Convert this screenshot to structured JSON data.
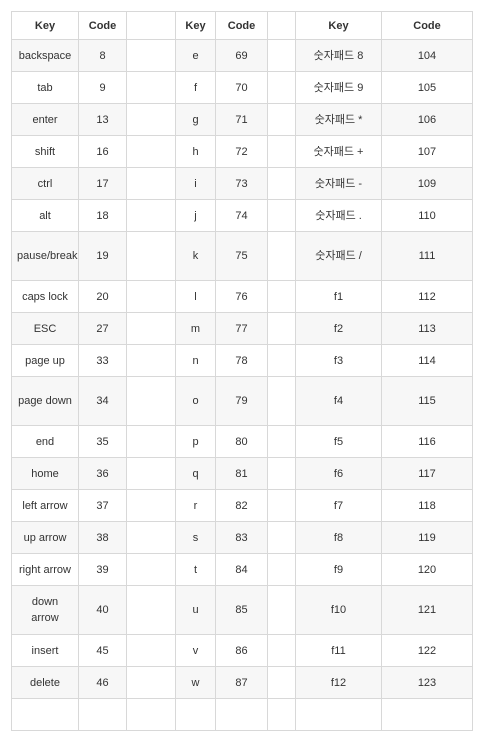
{
  "header": {
    "key1": "Key",
    "code1": "Code",
    "key2": "Key",
    "code2": "Code",
    "key3": "Key",
    "code3": "Code"
  },
  "rows": [
    {
      "k1": "backspace",
      "c1": "8",
      "k2": "e",
      "c2": "69",
      "k3": "숫자패드 8",
      "c3": "104"
    },
    {
      "k1": "tab",
      "c1": "9",
      "k2": "f",
      "c2": "70",
      "k3": "숫자패드 9",
      "c3": "105"
    },
    {
      "k1": "enter",
      "c1": "13",
      "k2": "g",
      "c2": "71",
      "k3": "숫자패드 *",
      "c3": "106"
    },
    {
      "k1": "shift",
      "c1": "16",
      "k2": "h",
      "c2": "72",
      "k3": "숫자패드 +",
      "c3": "107"
    },
    {
      "k1": "ctrl",
      "c1": "17",
      "k2": "i",
      "c2": "73",
      "k3": "숫자패드 -",
      "c3": "109"
    },
    {
      "k1": "alt",
      "c1": "18",
      "k2": "j",
      "c2": "74",
      "k3": "숫자패드 .",
      "c3": "110"
    },
    {
      "k1": "pause/break",
      "c1": "19",
      "k2": "k",
      "c2": "75",
      "k3": "숫자패드 /",
      "c3": "111"
    },
    {
      "k1": "caps lock",
      "c1": "20",
      "k2": "l",
      "c2": "76",
      "k3": "f1",
      "c3": "112"
    },
    {
      "k1": "ESC",
      "c1": "27",
      "k2": "m",
      "c2": "77",
      "k3": "f2",
      "c3": "113"
    },
    {
      "k1": "page up",
      "c1": "33",
      "k2": "n",
      "c2": "78",
      "k3": "f3",
      "c3": "114"
    },
    {
      "k1": "page down",
      "c1": "34",
      "k2": "o",
      "c2": "79",
      "k3": "f4",
      "c3": "115"
    },
    {
      "k1": "end",
      "c1": "35",
      "k2": "p",
      "c2": "80",
      "k3": "f5",
      "c3": "116"
    },
    {
      "k1": "home",
      "c1": "36",
      "k2": "q",
      "c2": "81",
      "k3": "f6",
      "c3": "117"
    },
    {
      "k1": "left arrow",
      "c1": "37",
      "k2": "r",
      "c2": "82",
      "k3": "f7",
      "c3": "118"
    },
    {
      "k1": "up arrow",
      "c1": "38",
      "k2": "s",
      "c2": "83",
      "k3": "f8",
      "c3": "119"
    },
    {
      "k1": "right arrow",
      "c1": "39",
      "k2": "t",
      "c2": "84",
      "k3": "f9",
      "c3": "120"
    },
    {
      "k1": "down arrow",
      "c1": "40",
      "k2": "u",
      "c2": "85",
      "k3": "f10",
      "c3": "121"
    },
    {
      "k1": "insert",
      "c1": "45",
      "k2": "v",
      "c2": "86",
      "k3": "f11",
      "c3": "122"
    },
    {
      "k1": "delete",
      "c1": "46",
      "k2": "w",
      "c2": "87",
      "k3": "f12",
      "c3": "123"
    },
    {
      "k1": "",
      "c1": "",
      "k2": "",
      "c2": "",
      "k3": "",
      "c3": ""
    }
  ]
}
